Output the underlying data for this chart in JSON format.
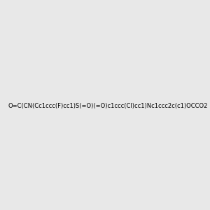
{
  "smiles": "O=C(CN(Cc1ccc(F)cc1)S(=O)(=O)c1ccc(Cl)cc1)Nc1ccc2c(c1)OCCO2",
  "img_size": [
    300,
    300
  ],
  "background_color": "#e8e8e8",
  "atom_colors": {
    "F": "#ff00ff",
    "Cl": "#00cc00",
    "N": "#0000ff",
    "O": "#ff0000",
    "S": "#cccc00"
  }
}
